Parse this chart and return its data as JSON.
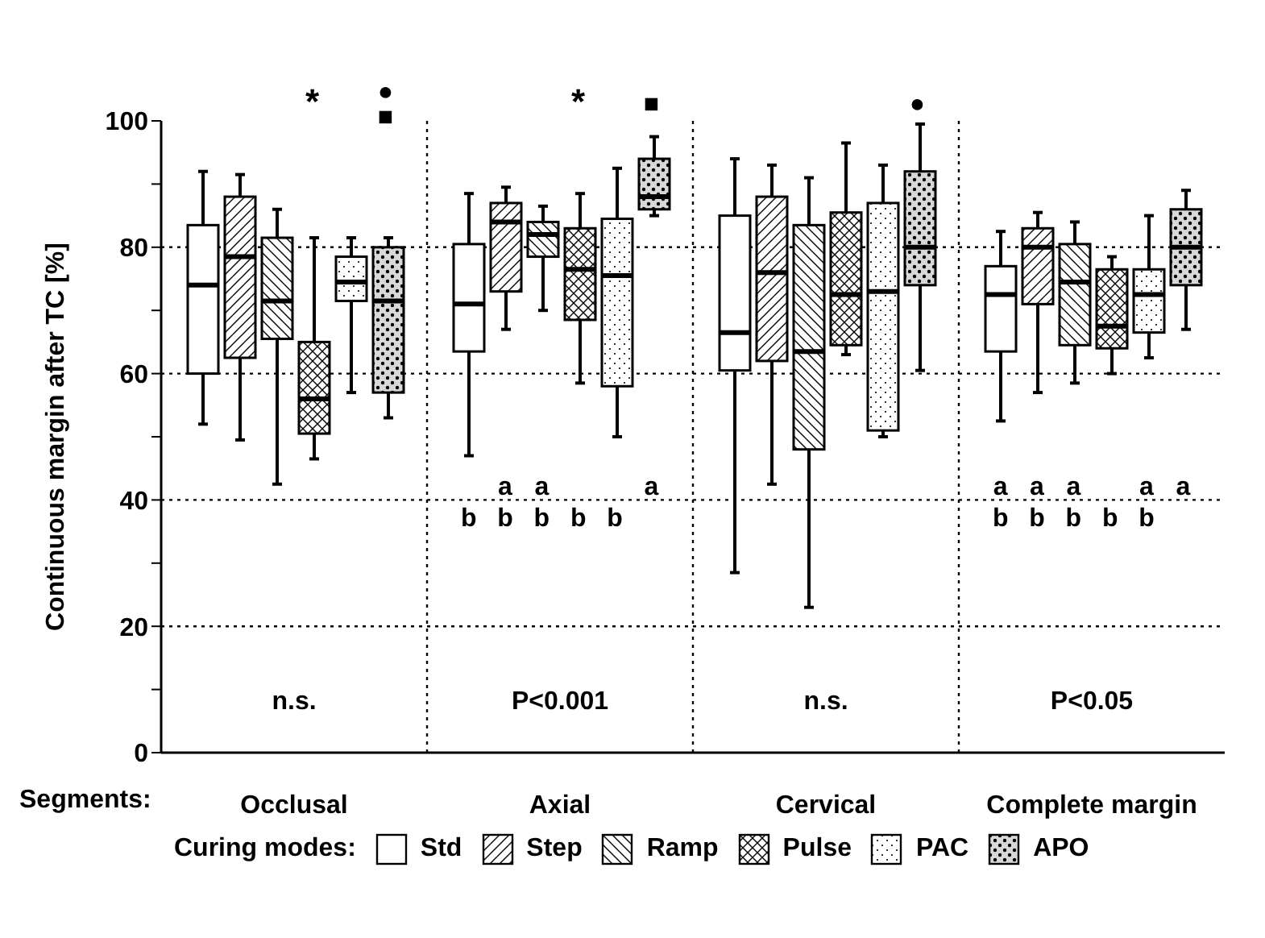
{
  "chart_data": {
    "type": "box",
    "xlabel": "Segments:",
    "ylabel": "Continuous margin after TC [%]",
    "legend_title": "Curing modes:",
    "categories": [
      "Occlusal",
      "Axial",
      "Cervical",
      "Complete margin"
    ],
    "ylim": [
      0,
      100
    ],
    "yticks": [
      0,
      {
        "value": 10,
        "label": null
      },
      20,
      {
        "value": 30,
        "label": null
      },
      40,
      {
        "value": 50,
        "label": null
      },
      60,
      {
        "value": 70,
        "label": null
      },
      80,
      {
        "value": 90,
        "label": null
      },
      100
    ],
    "grid": true,
    "legend": "bottom",
    "series": [
      {
        "name": "Std",
        "color": "#000000",
        "boxes": [
          {
            "low": 52,
            "q1": 60,
            "median": 74,
            "q3": 83.5,
            "high": 92
          },
          {
            "low": 47,
            "q1": 63.5,
            "median": 71,
            "q3": 80.5,
            "high": 88.5
          },
          {
            "low": 28.5,
            "q1": 60.5,
            "median": 66.5,
            "q3": 85,
            "high": 94
          },
          {
            "low": 52.5,
            "q1": 63.5,
            "median": 72.5,
            "q3": 77,
            "high": 82.5
          }
        ]
      },
      {
        "name": "Step",
        "color": "#000000",
        "boxes": [
          {
            "low": 49.5,
            "q1": 62.5,
            "median": 78.5,
            "q3": 88,
            "high": 91.5
          },
          {
            "low": 67,
            "q1": 73,
            "median": 84,
            "q3": 87,
            "high": 89.5
          },
          {
            "low": 42.5,
            "q1": 62,
            "median": 76,
            "q3": 88,
            "high": 93
          },
          {
            "low": 57,
            "q1": 71,
            "median": 80,
            "q3": 83,
            "high": 85.5
          }
        ]
      },
      {
        "name": "Ramp",
        "color": "#000000",
        "boxes": [
          {
            "low": 42.5,
            "q1": 65.5,
            "median": 71.5,
            "q3": 81.5,
            "high": 86
          },
          {
            "low": 70,
            "q1": 78.5,
            "median": 82,
            "q3": 84,
            "high": 86.5
          },
          {
            "low": 23,
            "q1": 48,
            "median": 63.5,
            "q3": 83.5,
            "high": 91
          },
          {
            "low": 58.5,
            "q1": 64.5,
            "median": 74.5,
            "q3": 80.5,
            "high": 84
          }
        ]
      },
      {
        "name": "Pulse",
        "color": "#000000",
        "boxes": [
          {
            "low": 46.5,
            "q1": 50.5,
            "median": 56,
            "q3": 65,
            "high": 81.5
          },
          {
            "low": 58.5,
            "q1": 68.5,
            "median": 76.5,
            "q3": 83,
            "high": 88.5
          },
          {
            "low": 63,
            "q1": 64.5,
            "median": 72.5,
            "q3": 85.5,
            "high": 96.5
          },
          {
            "low": 60,
            "q1": 64,
            "median": 67.5,
            "q3": 76.5,
            "high": 78.5
          }
        ]
      },
      {
        "name": "PAC",
        "color": "#000000",
        "boxes": [
          {
            "low": 57,
            "q1": 71.5,
            "median": 74.5,
            "q3": 78.5,
            "high": 81.5
          },
          {
            "low": 50,
            "q1": 58,
            "median": 75.5,
            "q3": 84.5,
            "high": 92.5
          },
          {
            "low": 50,
            "q1": 51,
            "median": 73,
            "q3": 87,
            "high": 93
          },
          {
            "low": 62.5,
            "q1": 66.5,
            "median": 72.5,
            "q3": 76.5,
            "high": 85
          }
        ]
      },
      {
        "name": "APO",
        "color": "#000000",
        "boxes": [
          {
            "low": 53,
            "q1": 57,
            "median": 71.5,
            "q3": 80,
            "high": 81.5
          },
          {
            "low": 85,
            "q1": 86,
            "median": 88,
            "q3": 94,
            "high": 97.5
          },
          {
            "low": 60.5,
            "q1": 74,
            "median": 80,
            "q3": 92,
            "high": 99.5
          },
          {
            "low": 67,
            "q1": 74,
            "median": 80,
            "q3": 86,
            "high": 89
          }
        ]
      }
    ],
    "annotations": [
      "n.s.",
      "P<0.001",
      "n.s.",
      "P<0.05",
      "b",
      "a",
      "b",
      "a",
      "b",
      "b",
      "b",
      "a",
      "a",
      "b",
      "a",
      "b",
      "a",
      "b",
      "b",
      "a",
      "b",
      "a",
      "*",
      "●",
      "■",
      "*",
      "■",
      "●"
    ]
  }
}
